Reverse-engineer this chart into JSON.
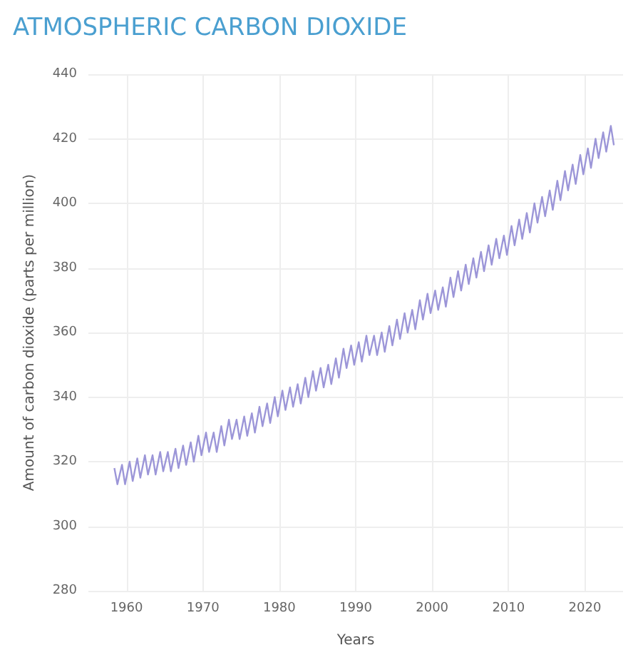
{
  "chart_data": {
    "type": "line",
    "title": "ATMOSPHERIC CARBON DIOXIDE",
    "xlabel": "Years",
    "ylabel": "Amount of carbon dioxide (parts per million)",
    "xlim": [
      1955,
      2025
    ],
    "xticks": [
      1960,
      1970,
      1980,
      1990,
      2000,
      2010,
      2020
    ],
    "ylim": [
      280,
      440
    ],
    "yticks": [
      280,
      300,
      320,
      340,
      360,
      380,
      400,
      420,
      440
    ],
    "grid": true,
    "marker": "none",
    "line_style": "solid",
    "series": [
      {
        "color": "#9c96d8",
        "x": [
          1958.4,
          1958.8,
          1959.4,
          1959.8,
          1960.4,
          1960.8,
          1961.4,
          1961.8,
          1962.4,
          1962.8,
          1963.4,
          1963.8,
          1964.4,
          1964.8,
          1965.4,
          1965.8,
          1966.4,
          1966.8,
          1967.4,
          1967.8,
          1968.4,
          1968.8,
          1969.4,
          1969.8,
          1970.4,
          1970.8,
          1971.4,
          1971.8,
          1972.4,
          1972.8,
          1973.4,
          1973.8,
          1974.4,
          1974.8,
          1975.4,
          1975.8,
          1976.4,
          1976.8,
          1977.4,
          1977.8,
          1978.4,
          1978.8,
          1979.4,
          1979.8,
          1980.4,
          1980.8,
          1981.4,
          1981.8,
          1982.4,
          1982.8,
          1983.4,
          1983.8,
          1984.4,
          1984.8,
          1985.4,
          1985.8,
          1986.4,
          1986.8,
          1987.4,
          1987.8,
          1988.4,
          1988.8,
          1989.4,
          1989.8,
          1990.4,
          1990.8,
          1991.4,
          1991.8,
          1992.4,
          1992.8,
          1993.4,
          1993.8,
          1994.4,
          1994.8,
          1995.4,
          1995.8,
          1996.4,
          1996.8,
          1997.4,
          1997.8,
          1998.4,
          1998.8,
          1999.4,
          1999.8,
          2000.4,
          2000.8,
          2001.4,
          2001.8,
          2002.4,
          2002.8,
          2003.4,
          2003.8,
          2004.4,
          2004.8,
          2005.4,
          2005.8,
          2006.4,
          2006.8,
          2007.4,
          2007.8,
          2008.4,
          2008.8,
          2009.4,
          2009.8,
          2010.4,
          2010.8,
          2011.4,
          2011.8,
          2012.4,
          2012.8,
          2013.4,
          2013.8,
          2014.4,
          2014.8,
          2015.4,
          2015.8,
          2016.4,
          2016.8,
          2017.4,
          2017.8,
          2018.4,
          2018.8,
          2019.4,
          2019.8,
          2020.4,
          2020.8,
          2021.4,
          2021.8,
          2022.4,
          2022.8,
          2023.4,
          2023.8
        ],
        "values": [
          318,
          313,
          319,
          313,
          320,
          314,
          321,
          315,
          322,
          316,
          322,
          316,
          323,
          317,
          323,
          317,
          324,
          318,
          325,
          319,
          326,
          320,
          328,
          322,
          329,
          323,
          329,
          323,
          331,
          325,
          333,
          327,
          333,
          327,
          334,
          328,
          335,
          329,
          337,
          331,
          338,
          332,
          340,
          334,
          342,
          336,
          343,
          337,
          344,
          338,
          346,
          340,
          348,
          342,
          349,
          343,
          350,
          344,
          352,
          346,
          355,
          349,
          356,
          350,
          357,
          351,
          359,
          353,
          359,
          353,
          360,
          354,
          362,
          356,
          364,
          358,
          366,
          360,
          367,
          361,
          370,
          364,
          372,
          366,
          373,
          367,
          374,
          368,
          377,
          371,
          379,
          373,
          381,
          375,
          383,
          377,
          385,
          379,
          387,
          381,
          389,
          383,
          390,
          384,
          393,
          387,
          395,
          389,
          397,
          391,
          400,
          394,
          402,
          396,
          404,
          398,
          407,
          401,
          410,
          404,
          412,
          406,
          415,
          409,
          417,
          411,
          420,
          414,
          422,
          416,
          424,
          418
        ]
      }
    ]
  }
}
